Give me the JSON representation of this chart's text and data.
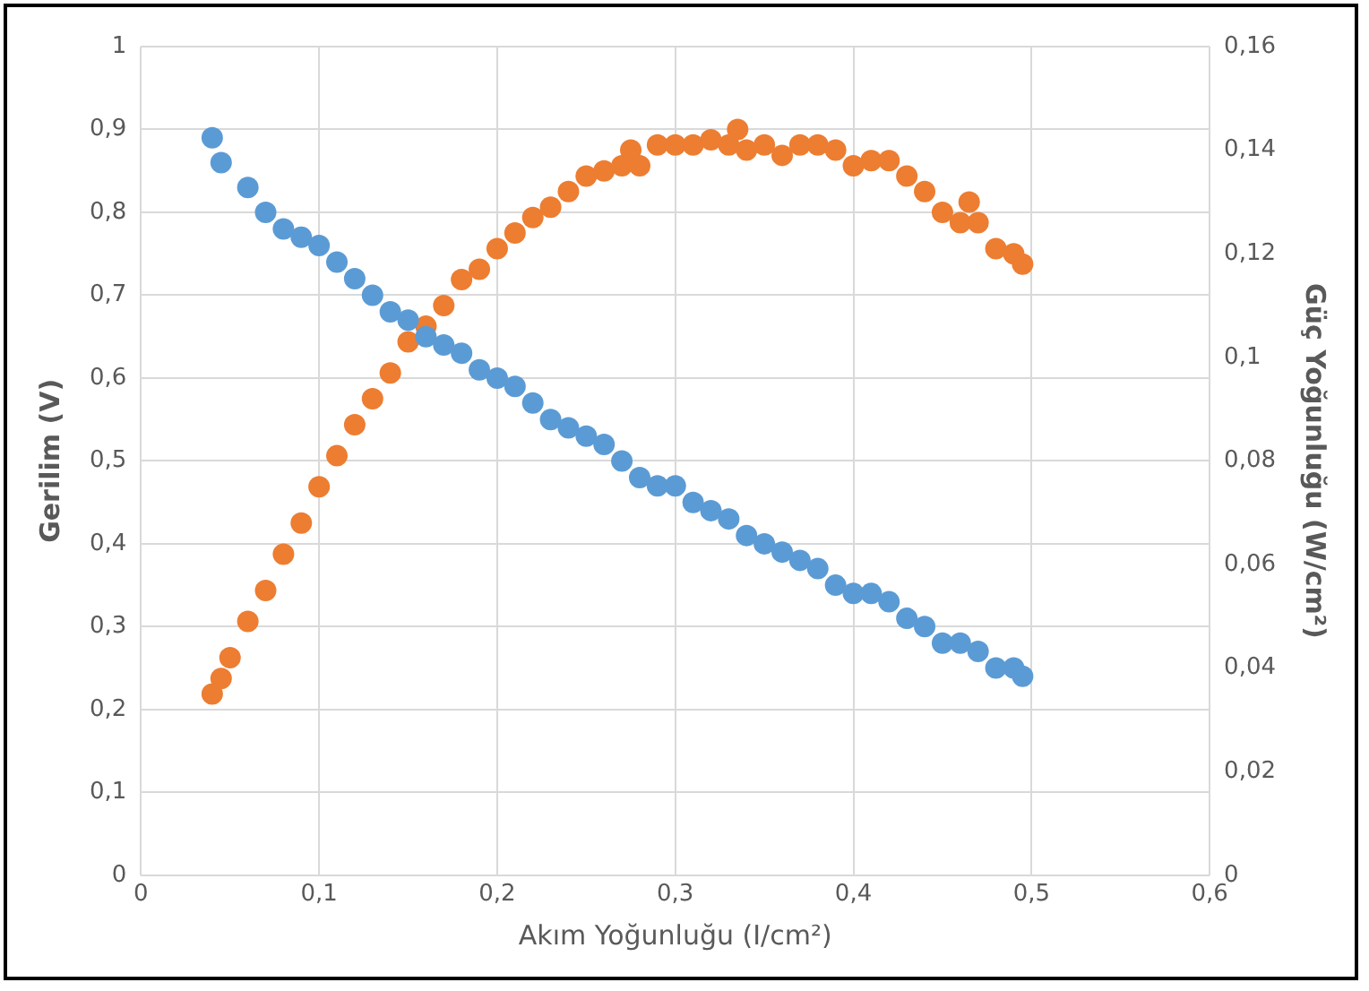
{
  "chart_data": {
    "type": "scatter",
    "xlabel": "Akım Yoğunluğu (I/cm²)",
    "ylabel": "Gerilim (V)",
    "y2label": "Güç Yoğunluğu (W/cm²)",
    "xlim": [
      0,
      0.6
    ],
    "xticks": [
      {
        "value": 0,
        "label": "0"
      },
      {
        "value": 0.1,
        "label": "0,1"
      },
      {
        "value": 0.2,
        "label": "0,2"
      },
      {
        "value": 0.3,
        "label": "0,3"
      },
      {
        "value": 0.4,
        "label": "0,4"
      },
      {
        "value": 0.5,
        "label": "0,5"
      },
      {
        "value": 0.6,
        "label": "0,6"
      }
    ],
    "ylim": [
      0,
      1
    ],
    "yticks": [
      {
        "value": 0,
        "label": "0"
      },
      {
        "value": 0.1,
        "label": "0,1"
      },
      {
        "value": 0.2,
        "label": "0,2"
      },
      {
        "value": 0.3,
        "label": "0,3"
      },
      {
        "value": 0.4,
        "label": "0,4"
      },
      {
        "value": 0.5,
        "label": "0,5"
      },
      {
        "value": 0.6,
        "label": "0,6"
      },
      {
        "value": 0.7,
        "label": "0,7"
      },
      {
        "value": 0.8,
        "label": "0,8"
      },
      {
        "value": 0.9,
        "label": "0,9"
      },
      {
        "value": 1,
        "label": "1"
      }
    ],
    "y2lim": [
      0,
      0.16
    ],
    "y2ticks": [
      {
        "value": 0,
        "label": "0"
      },
      {
        "value": 0.02,
        "label": "0,02"
      },
      {
        "value": 0.04,
        "label": "0,04"
      },
      {
        "value": 0.06,
        "label": "0,06"
      },
      {
        "value": 0.08,
        "label": "0,08"
      },
      {
        "value": 0.1,
        "label": "0,1"
      },
      {
        "value": 0.12,
        "label": "0,12"
      },
      {
        "value": 0.14,
        "label": "0,14"
      },
      {
        "value": 0.16,
        "label": "0,16"
      }
    ],
    "grid": true,
    "legend": false,
    "marker": "circle",
    "series": [
      {
        "color": "#5b9bd5",
        "x": [
          0.04,
          0.045,
          0.06,
          0.07,
          0.08,
          0.09,
          0.1,
          0.11,
          0.12,
          0.13,
          0.14,
          0.15,
          0.16,
          0.17,
          0.18,
          0.19,
          0.2,
          0.21,
          0.22,
          0.23,
          0.24,
          0.25,
          0.26,
          0.27,
          0.28,
          0.29,
          0.3,
          0.31,
          0.32,
          0.33,
          0.34,
          0.35,
          0.36,
          0.37,
          0.38,
          0.39,
          0.4,
          0.41,
          0.42,
          0.43,
          0.44,
          0.45,
          0.46,
          0.47,
          0.48,
          0.49,
          0.495
        ],
        "values": [
          0.89,
          0.86,
          0.83,
          0.8,
          0.78,
          0.77,
          0.76,
          0.74,
          0.72,
          0.7,
          0.68,
          0.67,
          0.65,
          0.64,
          0.63,
          0.61,
          0.6,
          0.59,
          0.57,
          0.55,
          0.54,
          0.53,
          0.52,
          0.5,
          0.48,
          0.47,
          0.47,
          0.45,
          0.44,
          0.43,
          0.41,
          0.4,
          0.39,
          0.38,
          0.37,
          0.35,
          0.34,
          0.34,
          0.33,
          0.31,
          0.3,
          0.28,
          0.28,
          0.27,
          0.25,
          0.25,
          0.24
        ]
      },
      {
        "color": "#ed7d31",
        "axis": "y2",
        "x": [
          0.04,
          0.045,
          0.05,
          0.06,
          0.07,
          0.08,
          0.09,
          0.1,
          0.11,
          0.12,
          0.13,
          0.14,
          0.15,
          0.16,
          0.17,
          0.18,
          0.19,
          0.2,
          0.21,
          0.22,
          0.23,
          0.24,
          0.25,
          0.26,
          0.27,
          0.275,
          0.28,
          0.29,
          0.3,
          0.31,
          0.32,
          0.33,
          0.335,
          0.34,
          0.35,
          0.36,
          0.37,
          0.38,
          0.39,
          0.4,
          0.41,
          0.42,
          0.43,
          0.44,
          0.45,
          0.46,
          0.465,
          0.47,
          0.48,
          0.49,
          0.495
        ],
        "values": [
          0.035,
          0.038,
          0.042,
          0.049,
          0.055,
          0.062,
          0.068,
          0.075,
          0.081,
          0.087,
          0.092,
          0.097,
          0.103,
          0.106,
          0.11,
          0.115,
          0.117,
          0.121,
          0.124,
          0.127,
          0.129,
          0.132,
          0.135,
          0.136,
          0.137,
          0.14,
          0.137,
          0.141,
          0.141,
          0.141,
          0.142,
          0.141,
          0.144,
          0.14,
          0.141,
          0.139,
          0.141,
          0.141,
          0.14,
          0.137,
          0.138,
          0.138,
          0.135,
          0.132,
          0.128,
          0.126,
          0.13,
          0.126,
          0.121,
          0.12,
          0.118
        ]
      }
    ]
  }
}
